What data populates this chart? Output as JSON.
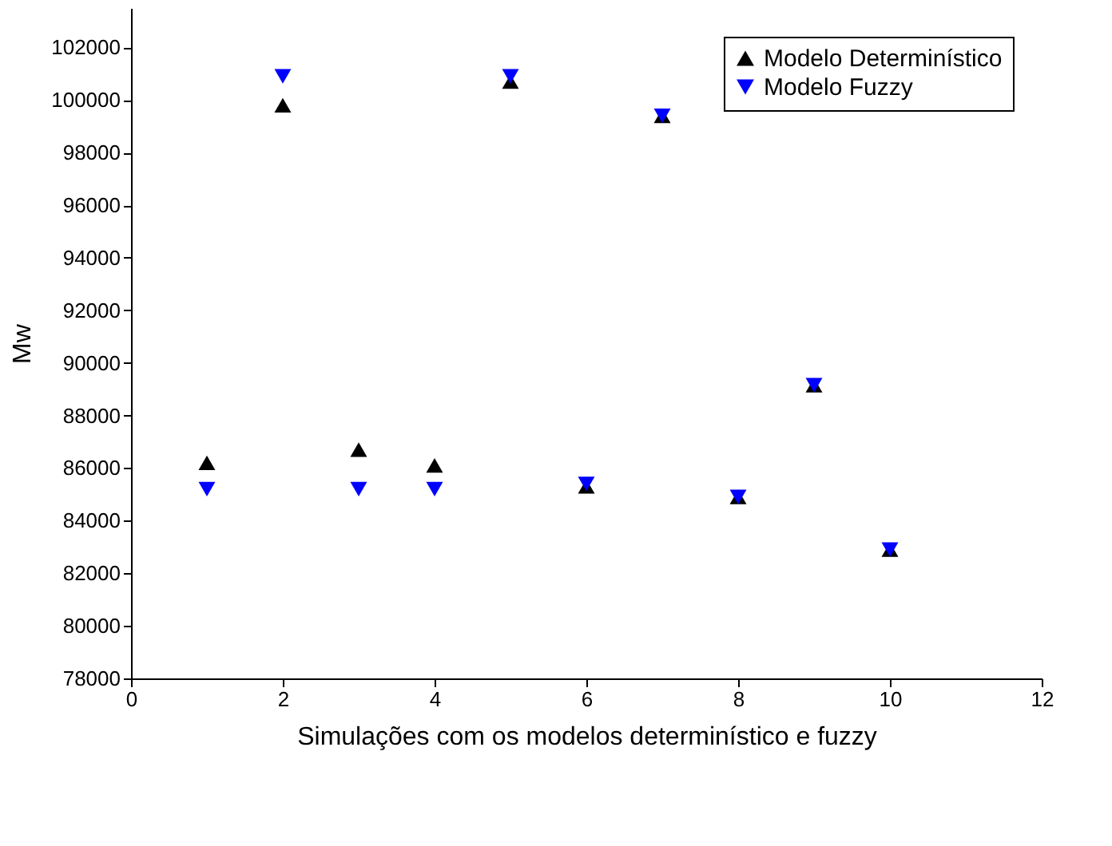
{
  "chart_data": {
    "type": "scatter",
    "xlabel": "Simulações com os modelos determinístico e fuzzy",
    "ylabel": "Mw",
    "x": [
      1,
      2,
      3,
      4,
      5,
      6,
      7,
      8,
      9,
      10
    ],
    "series": [
      {
        "name": "Modelo Determinístico",
        "color": "#000000",
        "marker": "triangle",
        "values": [
          86200,
          99800,
          86700,
          86100,
          100700,
          85300,
          99400,
          84900,
          89150,
          82900
        ]
      },
      {
        "name": "Modelo Fuzzy",
        "color": "#0000ff",
        "marker": "triangle-down",
        "values": [
          85200,
          100900,
          85200,
          85200,
          100900,
          85400,
          99400,
          84900,
          89150,
          82900
        ]
      }
    ],
    "xlim": [
      0,
      12
    ],
    "xticks": [
      0,
      2,
      4,
      6,
      8,
      10,
      12
    ],
    "ylim": [
      78000,
      103500
    ],
    "yticks": [
      78000,
      80000,
      82000,
      84000,
      86000,
      88000,
      90000,
      92000,
      94000,
      96000,
      98000,
      100000,
      102000
    ],
    "grid": false,
    "legend": "top right"
  }
}
